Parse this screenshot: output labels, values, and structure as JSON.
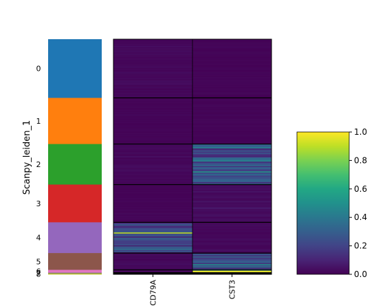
{
  "chart_data": {
    "type": "heatmap",
    "title": "",
    "ylabel": "Scanpy_leiden_1",
    "xlabel": "",
    "genes": [
      "CD79A",
      "CST3"
    ],
    "groups": [
      {
        "label": "0",
        "color": "#1f77b4",
        "cells": 420,
        "mean": [
          0.02,
          0.01
        ]
      },
      {
        "label": "1",
        "color": "#ff7f0e",
        "cells": 330,
        "mean": [
          0.01,
          0.01
        ]
      },
      {
        "label": "2",
        "color": "#2ca02c",
        "cells": 290,
        "mean": [
          0.02,
          0.22
        ]
      },
      {
        "label": "3",
        "color": "#d62728",
        "cells": 270,
        "mean": [
          0.01,
          0.03
        ]
      },
      {
        "label": "4",
        "color": "#9467bd",
        "cells": 220,
        "mean": [
          0.18,
          0.02
        ]
      },
      {
        "label": "5",
        "color": "#8c564b",
        "cells": 120,
        "mean": [
          0.02,
          0.2
        ]
      },
      {
        "label": "6",
        "color": "#e377c2",
        "cells": 20,
        "mean": [
          0.03,
          0.6
        ]
      },
      {
        "label": "7",
        "color": "#7f7f7f",
        "cells": 6,
        "mean": [
          0.02,
          0.05
        ]
      },
      {
        "label": "8",
        "color": "#bcbd22",
        "cells": 6,
        "mean": [
          0.01,
          0.02
        ]
      }
    ],
    "highlights": [
      {
        "group": "4",
        "gene": "CD79A",
        "position": 0.33,
        "value": 0.9
      },
      {
        "group": "6",
        "gene": "CST3",
        "position": 0.3,
        "value": 0.95
      }
    ],
    "colorbar": {
      "cmap": "viridis",
      "range": [
        0.0,
        1.0
      ],
      "ticks": [
        "0.0",
        "0.2",
        "0.4",
        "0.6",
        "0.8",
        "1.0"
      ]
    }
  }
}
